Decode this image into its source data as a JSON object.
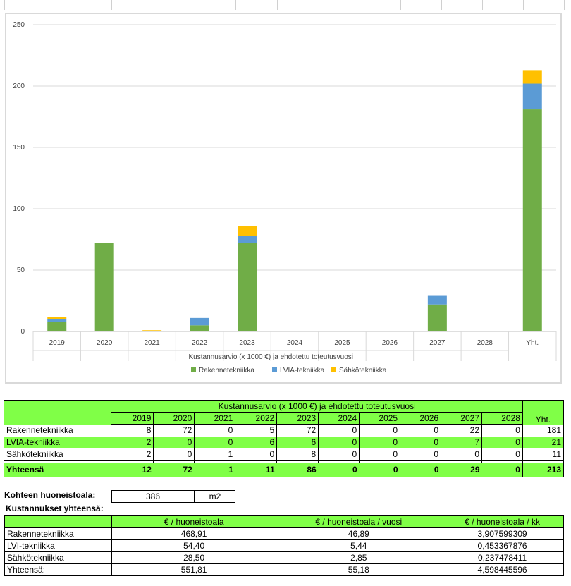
{
  "chart_data": {
    "type": "bar",
    "stacked": true,
    "categories": [
      "2019",
      "2020",
      "2021",
      "2022",
      "2023",
      "2024",
      "2025",
      "2026",
      "2027",
      "2028",
      "Yht."
    ],
    "series": [
      {
        "name": "Rakennetekniikka",
        "color": "#70ad47",
        "values": [
          8,
          72,
          0,
          5,
          72,
          0,
          0,
          0,
          22,
          0,
          181
        ]
      },
      {
        "name": "LVIA-tekniikka",
        "color": "#5b9bd5",
        "values": [
          2,
          0,
          0,
          6,
          6,
          0,
          0,
          0,
          7,
          0,
          21
        ]
      },
      {
        "name": "Sähkötekniikka",
        "color": "#ffc000",
        "values": [
          2,
          0,
          1,
          0,
          8,
          0,
          0,
          0,
          0,
          0,
          11
        ]
      }
    ],
    "title": "",
    "xlabel": "Kustannusarvio (x 1000 €) ja ehdotettu toteutusvuosi",
    "ylabel": "",
    "ylim": [
      0,
      250
    ],
    "yticks": [
      "0",
      "50",
      "100",
      "150",
      "200",
      "250"
    ],
    "grid": true,
    "legend": "bottom"
  },
  "table1": {
    "header": "Kustannusarvio (x 1000 €) ja ehdotettu toteutusvuosi",
    "years": [
      "2019",
      "2020",
      "2021",
      "2022",
      "2023",
      "2024",
      "2025",
      "2026",
      "2027",
      "2028"
    ],
    "total_label": "Yht.",
    "rows": [
      {
        "label": "Rakennetekniikka",
        "values": [
          "8",
          "72",
          "0",
          "5",
          "72",
          "0",
          "0",
          "0",
          "22",
          "0"
        ],
        "total": "181"
      },
      {
        "label": "LVIA-tekniikka",
        "values": [
          "2",
          "0",
          "0",
          "6",
          "6",
          "0",
          "0",
          "0",
          "7",
          "0"
        ],
        "total": "21"
      },
      {
        "label": "Sähkötekniikka",
        "values": [
          "2",
          "0",
          "1",
          "0",
          "8",
          "0",
          "0",
          "0",
          "0",
          "0"
        ],
        "total": "11"
      }
    ],
    "sum": {
      "label": "Yhteensä",
      "values": [
        "12",
        "72",
        "1",
        "11",
        "86",
        "0",
        "0",
        "0",
        "29",
        "0"
      ],
      "total": "213"
    }
  },
  "area": {
    "label": "Kohteen huoneistoala:",
    "value": "386",
    "unit": "m2"
  },
  "costs": {
    "title": "Kustannukset yhteensä:",
    "headers": [
      "€ / huoneistoala",
      "€ / huoneistoala / vuosi",
      "€ / huoneistoala / kk"
    ],
    "rows": [
      {
        "label": "Rakennetekniikka",
        "values": [
          "468,91",
          "46,89",
          "3,907599309"
        ]
      },
      {
        "label": "LVI-tekniikka",
        "values": [
          "54,40",
          "5,44",
          "0,453367876"
        ]
      },
      {
        "label": "Sähkötekniikka",
        "values": [
          "28,50",
          "2,85",
          "0,237478411"
        ]
      },
      {
        "label": "Yhteensä:",
        "values": [
          "551,81",
          "55,18",
          "4,598445596"
        ]
      }
    ]
  }
}
